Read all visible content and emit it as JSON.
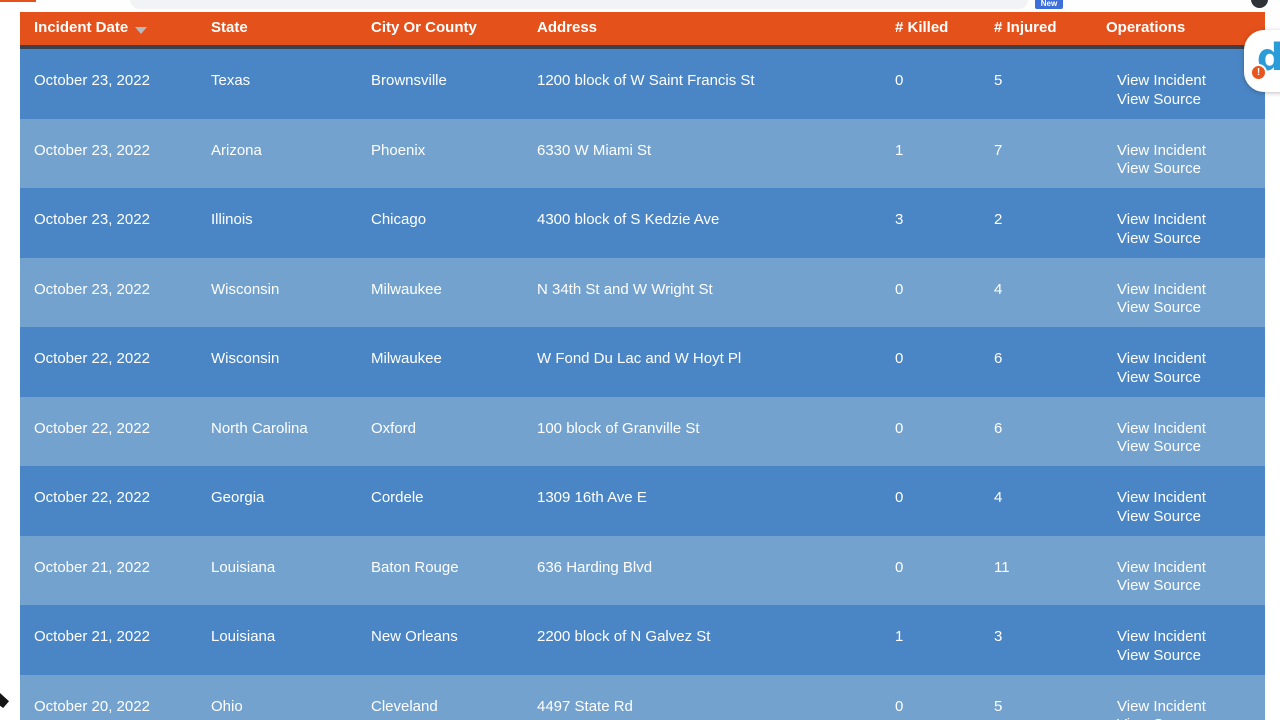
{
  "browser": {
    "new_badge_label": "New"
  },
  "extension_overlay": {
    "logo_letter": "d",
    "alert_badge": "!"
  },
  "table": {
    "columns": [
      {
        "label": "Incident Date",
        "sort": "desc"
      },
      {
        "label": "State"
      },
      {
        "label": "City Or County"
      },
      {
        "label": "Address"
      },
      {
        "label": "# Killed"
      },
      {
        "label": "# Injured"
      },
      {
        "label": "Operations"
      }
    ],
    "rows": [
      {
        "date": "October 23, 2022",
        "state": "Texas",
        "city": "Brownsville",
        "address": "1200 block of W Saint Francis St",
        "killed": 0,
        "injured": 5,
        "ops": [
          "View Incident",
          "View Source"
        ]
      },
      {
        "date": "October 23, 2022",
        "state": "Arizona",
        "city": "Phoenix",
        "address": "6330 W Miami St",
        "killed": 1,
        "injured": 7,
        "ops": [
          "View Incident",
          "View Source"
        ]
      },
      {
        "date": "October 23, 2022",
        "state": "Illinois",
        "city": "Chicago",
        "address": "4300 block of S Kedzie Ave",
        "killed": 3,
        "injured": 2,
        "ops": [
          "View Incident",
          "View Source"
        ]
      },
      {
        "date": "October 23, 2022",
        "state": "Wisconsin",
        "city": "Milwaukee",
        "address": "N 34th St and W Wright St",
        "killed": 0,
        "injured": 4,
        "ops": [
          "View Incident",
          "View Source"
        ]
      },
      {
        "date": "October 22, 2022",
        "state": "Wisconsin",
        "city": "Milwaukee",
        "address": "W Fond Du Lac and W Hoyt Pl",
        "killed": 0,
        "injured": 6,
        "ops": [
          "View Incident",
          "View Source"
        ]
      },
      {
        "date": "October 22, 2022",
        "state": "North Carolina",
        "city": "Oxford",
        "address": "100 block of Granville St",
        "killed": 0,
        "injured": 6,
        "ops": [
          "View Incident",
          "View Source"
        ]
      },
      {
        "date": "October 22, 2022",
        "state": "Georgia",
        "city": "Cordele",
        "address": "1309 16th Ave E",
        "killed": 0,
        "injured": 4,
        "ops": [
          "View Incident",
          "View Source"
        ]
      },
      {
        "date": "October 21, 2022",
        "state": "Louisiana",
        "city": "Baton Rouge",
        "address": "636 Harding Blvd",
        "killed": 0,
        "injured": 11,
        "ops": [
          "View Incident",
          "View Source"
        ]
      },
      {
        "date": "October 21, 2022",
        "state": "Louisiana",
        "city": "New Orleans",
        "address": "2200 block of N Galvez St",
        "killed": 1,
        "injured": 3,
        "ops": [
          "View Incident",
          "View Source"
        ]
      },
      {
        "date": "October 20, 2022",
        "state": "Ohio",
        "city": "Cleveland",
        "address": "4497 State Rd",
        "killed": 0,
        "injured": 5,
        "ops": [
          "View Incident",
          "View Source"
        ]
      }
    ]
  },
  "colors": {
    "header_bg": "#e5511b",
    "header_divider": "#3a4150",
    "row_dark": "#4a86c5",
    "row_light": "#73a2cf",
    "text": "#ffffff",
    "sort_caret": "#b4bac0",
    "new_badge_bg": "#3e6fd8",
    "extension_logo": "#2b9cd8",
    "extension_badge_bg": "#e8551d"
  }
}
